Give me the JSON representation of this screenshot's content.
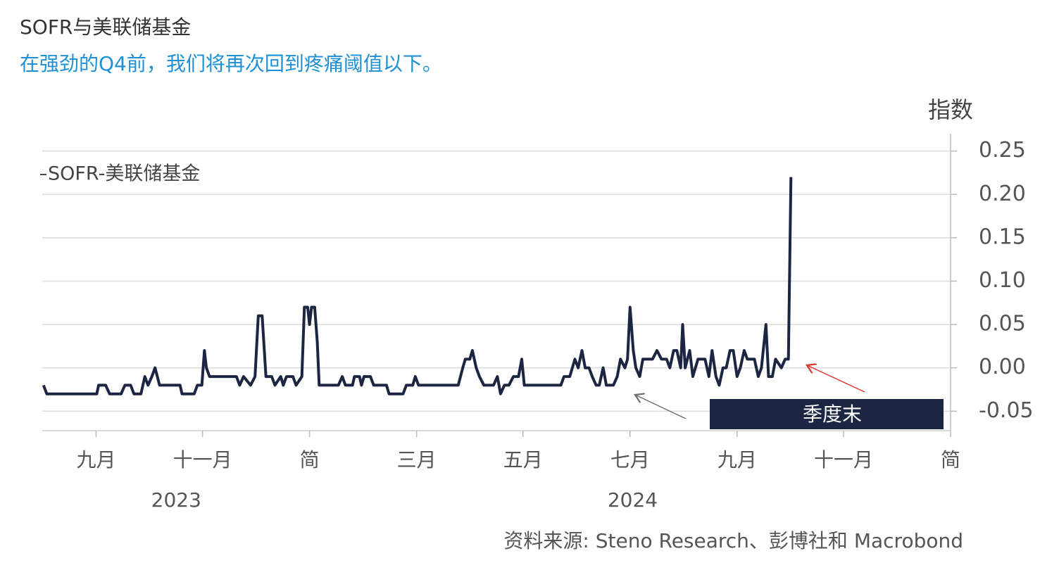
{
  "chart_data": {
    "type": "line",
    "title": "SOFR与美联储基金",
    "subtitle": "在强劲的Q4前，我们将再次回到疼痛阈值以下。",
    "y_axis_label": "指数",
    "source": "资料来源: Steno Research、彭博社和 Macrobond",
    "annotation": "季度末",
    "grid": true,
    "xlim": [
      2023.583,
      2025.0
    ],
    "xticks": [
      {
        "value": 2023.667,
        "label": "九月"
      },
      {
        "value": 2023.833,
        "label": "十一月"
      },
      {
        "value": 2024,
        "label": "简"
      },
      {
        "value": 2024.167,
        "label": "三月"
      },
      {
        "value": 2024.333,
        "label": "五月"
      },
      {
        "value": 2024.5,
        "label": "七月"
      },
      {
        "value": 2024.667,
        "label": "九月"
      },
      {
        "value": 2024.833,
        "label": "十一月"
      },
      {
        "value": 2025,
        "label": "简"
      }
    ],
    "x_group_labels": [
      {
        "value": 2023.792,
        "label": "2023"
      },
      {
        "value": 2024.504,
        "label": "2024"
      }
    ],
    "ylim": [
      -0.07,
      0.27
    ],
    "yticks": [
      {
        "value": -0.05,
        "label": "-0.05"
      },
      {
        "value": 0,
        "label": "0.00"
      },
      0.05,
      {
        "value": 0.1,
        "label": "0.10"
      },
      0.15,
      {
        "value": 0.2,
        "label": "0.20"
      },
      0.25
    ],
    "x": [
      2023.585,
      2023.59,
      2023.668,
      2023.671,
      2023.682,
      2023.688,
      2023.706,
      2023.712,
      2023.721,
      2023.726,
      2023.737,
      2023.743,
      2023.748,
      2023.754,
      2023.759,
      2023.766,
      2023.798,
      2023.801,
      2023.82,
      2023.825,
      2023.832,
      2023.836,
      2023.839,
      2023.844,
      2023.886,
      2023.891,
      2023.897,
      2023.908,
      2023.915,
      2023.92,
      2023.926,
      2023.932,
      2023.941,
      2023.946,
      2023.955,
      2023.959,
      2023.964,
      2023.974,
      2023.979,
      2023.988,
      2023.992,
      2023.997,
      2024.0,
      2024.003,
      2024.008,
      2024.012,
      2024.015,
      2024.045,
      2024.051,
      2024.056,
      2024.067,
      2024.07,
      2024.078,
      2024.081,
      2024.085,
      2024.095,
      2024.1,
      2024.12,
      2024.124,
      2024.146,
      2024.151,
      2024.161,
      2024.165,
      2024.17,
      2024.232,
      2024.239,
      2024.243,
      2024.25,
      2024.254,
      2024.26,
      2024.265,
      2024.272,
      2024.287,
      2024.293,
      2024.298,
      2024.304,
      2024.311,
      2024.318,
      2024.326,
      2024.331,
      2024.335,
      2024.392,
      2024.397,
      2024.406,
      2024.414,
      2024.419,
      2024.425,
      2024.43,
      2024.436,
      2024.441,
      2024.447,
      2024.452,
      2024.458,
      2024.463,
      2024.474,
      2024.48,
      2024.485,
      2024.492,
      2024.496,
      2024.5,
      2024.505,
      2024.509,
      2024.515,
      2024.52,
      2024.535,
      2024.542,
      2024.549,
      2024.557,
      2024.562,
      2024.568,
      2024.573,
      2024.579,
      2024.582,
      2024.586,
      2024.593,
      2024.598,
      2024.606,
      2024.617,
      2024.623,
      2024.628,
      2024.634,
      2024.639,
      2024.645,
      2024.65,
      2024.656,
      2024.661,
      2024.667,
      2024.672,
      2024.678,
      2024.683,
      2024.694,
      2024.7,
      2024.705,
      2024.712,
      2024.716,
      2024.722,
      2024.727,
      2024.736,
      2024.742,
      2024.747,
      2024.751
    ],
    "series": [
      {
        "name": "SOFR-美联储基金",
        "color": "#1c2541",
        "values": [
          -0.02,
          -0.03,
          -0.03,
          -0.02,
          -0.02,
          -0.03,
          -0.03,
          -0.02,
          -0.02,
          -0.03,
          -0.03,
          -0.01,
          -0.02,
          -0.01,
          0.0,
          -0.02,
          -0.02,
          -0.03,
          -0.03,
          -0.02,
          -0.02,
          0.02,
          0.0,
          -0.01,
          -0.01,
          -0.02,
          -0.01,
          -0.02,
          -0.01,
          0.06,
          0.06,
          -0.01,
          -0.01,
          -0.02,
          -0.01,
          -0.02,
          -0.01,
          -0.01,
          -0.02,
          -0.01,
          0.07,
          0.07,
          0.05,
          0.07,
          0.07,
          0.03,
          -0.02,
          -0.02,
          -0.01,
          -0.02,
          -0.02,
          -0.01,
          -0.01,
          -0.02,
          -0.01,
          -0.01,
          -0.02,
          -0.02,
          -0.03,
          -0.03,
          -0.02,
          -0.02,
          -0.01,
          -0.02,
          -0.02,
          0.0,
          0.01,
          0.01,
          0.02,
          0.0,
          -0.01,
          -0.02,
          -0.02,
          -0.01,
          -0.03,
          -0.02,
          -0.02,
          -0.01,
          -0.01,
          0.01,
          -0.02,
          -0.02,
          -0.01,
          -0.01,
          0.01,
          0.0,
          0.02,
          0.0,
          0.0,
          -0.01,
          -0.02,
          -0.02,
          0.0,
          -0.02,
          -0.02,
          -0.01,
          0.01,
          0.0,
          0.01,
          0.07,
          0.02,
          0.0,
          -0.01,
          0.01,
          0.01,
          0.02,
          0.01,
          0.01,
          0.0,
          0.02,
          0.02,
          0.0,
          0.05,
          0.0,
          0.02,
          -0.01,
          0.01,
          0.01,
          -0.01,
          0.02,
          -0.01,
          -0.02,
          0.0,
          0.0,
          0.02,
          0.02,
          -0.01,
          0.0,
          0.02,
          0.01,
          0.01,
          -0.01,
          0.0,
          0.05,
          -0.01,
          -0.01,
          0.01,
          0.0,
          0.01,
          0.01,
          0.22
        ]
      }
    ]
  }
}
